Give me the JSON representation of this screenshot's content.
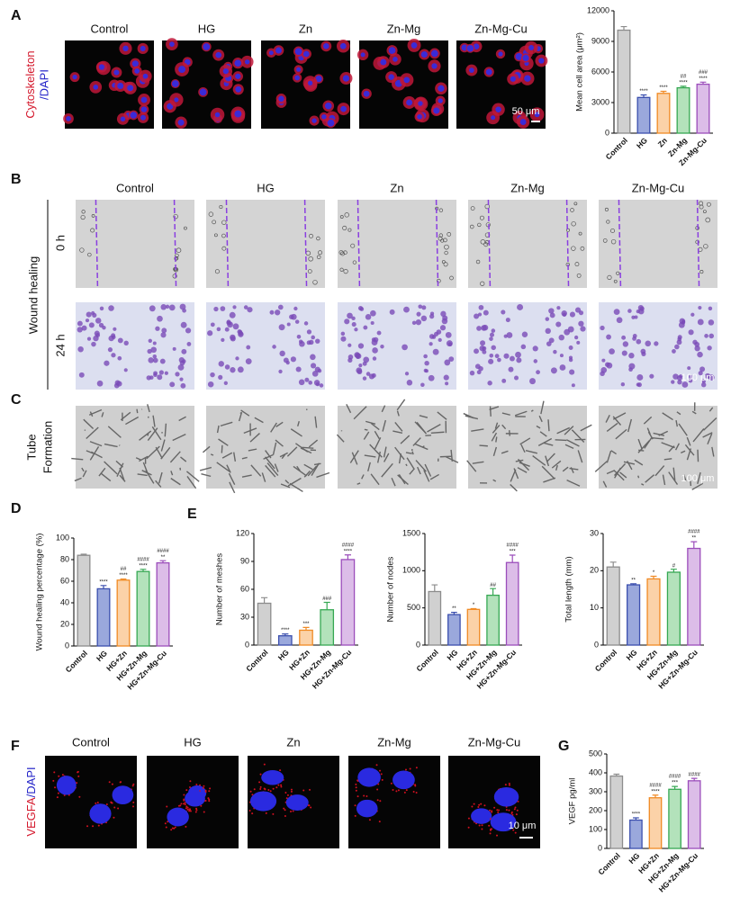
{
  "figure": {
    "panel_labels": [
      "A",
      "B",
      "C",
      "D",
      "E",
      "F",
      "G"
    ],
    "panel_a": {
      "columns": [
        "Control",
        "HG",
        "Zn",
        "Zn-Mg",
        "Zn-Mg-Cu"
      ],
      "ylabel_parts": [
        "Cytoskeleton",
        "/DAPI"
      ],
      "scale_bar": "50 μm"
    },
    "panel_b": {
      "columns": [
        "Control",
        "HG",
        "Zn",
        "Zn-Mg",
        "Zn-Mg-Cu"
      ],
      "rows": [
        "0 h",
        "24 h"
      ],
      "ylabel": "Wound healing",
      "scale_bar": "100 μm"
    },
    "panel_c": {
      "ylabel_lines": [
        "Tube",
        "Formation"
      ],
      "scale_bar": "100 μm"
    },
    "panel_f": {
      "columns": [
        "Control",
        "HG",
        "Zn",
        "Zn-Mg",
        "Zn-Mg-Cu"
      ],
      "ylabel_parts": [
        "VEGFA",
        "/DAPI"
      ],
      "scale_bar": "10 μm"
    }
  },
  "chart_data": [
    {
      "type": "bar",
      "ylabel": "Mean cell area (μm²)",
      "categories": [
        "Control",
        "HG",
        "Zn",
        "Zn-Mg",
        "Zn-Mg-Cu"
      ],
      "values": [
        10100,
        3500,
        3900,
        4450,
        4800
      ],
      "errors": [
        350,
        250,
        200,
        150,
        200
      ],
      "annotations": [
        [],
        [
          "****"
        ],
        [
          "****"
        ],
        [
          "##",
          "****"
        ],
        [
          "###",
          "****"
        ]
      ],
      "colors": [
        "#8c8c8c",
        "#3b4fae",
        "#f08a24",
        "#36a853",
        "#9b4dbb"
      ],
      "fill_colors": [
        "#d0d0d0",
        "#9aa8dc",
        "#fbd2a8",
        "#b3e2bb",
        "#dcbde8"
      ],
      "ylim": [
        0,
        12000
      ],
      "yticks": [
        0,
        3000,
        6000,
        9000,
        12000
      ]
    },
    {
      "type": "bar",
      "ylabel": "Wound healing percentage (%)",
      "categories": [
        "Control",
        "HG",
        "HG+Zn",
        "HG+Zn-Mg",
        "HG+Zn-Mg-Cu"
      ],
      "values": [
        84,
        53,
        61,
        69,
        77
      ],
      "errors": [
        1,
        3,
        1,
        2,
        2
      ],
      "annotations": [
        [],
        [
          "****"
        ],
        [
          "##",
          "****"
        ],
        [
          "####",
          "****"
        ],
        [
          "####",
          "**"
        ]
      ],
      "colors": [
        "#8c8c8c",
        "#3b4fae",
        "#f08a24",
        "#36a853",
        "#9b4dbb"
      ],
      "fill_colors": [
        "#d0d0d0",
        "#9aa8dc",
        "#fbd2a8",
        "#b3e2bb",
        "#dcbde8"
      ],
      "ylim": [
        0,
        100
      ],
      "yticks": [
        0,
        20,
        40,
        60,
        80,
        100
      ]
    },
    {
      "type": "bar",
      "ylabel": "Number of meshes",
      "categories": [
        "Control",
        "HG",
        "HG+Zn",
        "HG+Zn-Mg",
        "HG+Zn-Mg-Cu"
      ],
      "values": [
        45,
        10,
        16,
        38,
        92
      ],
      "errors": [
        6,
        2,
        3,
        8,
        5
      ],
      "annotations": [
        [],
        [
          "****"
        ],
        [
          "***"
        ],
        [
          "###"
        ],
        [
          "####",
          "****"
        ]
      ],
      "colors": [
        "#8c8c8c",
        "#3b4fae",
        "#f08a24",
        "#36a853",
        "#9b4dbb"
      ],
      "fill_colors": [
        "#d0d0d0",
        "#9aa8dc",
        "#fbd2a8",
        "#b3e2bb",
        "#dcbde8"
      ],
      "ylim": [
        0,
        120
      ],
      "yticks": [
        0,
        30,
        60,
        90,
        120
      ]
    },
    {
      "type": "bar",
      "ylabel": "Number of nodes",
      "categories": [
        "Control",
        "HG",
        "HG+Zn",
        "HG+Zn-Mg",
        "HG+Zn-Mg-Cu"
      ],
      "values": [
        720,
        410,
        480,
        670,
        1110
      ],
      "errors": [
        90,
        30,
        10,
        90,
        100
      ],
      "annotations": [
        [],
        [
          "**"
        ],
        [
          "*"
        ],
        [
          "##"
        ],
        [
          "####",
          "***"
        ]
      ],
      "colors": [
        "#8c8c8c",
        "#3b4fae",
        "#f08a24",
        "#36a853",
        "#9b4dbb"
      ],
      "fill_colors": [
        "#d0d0d0",
        "#9aa8dc",
        "#fbd2a8",
        "#b3e2bb",
        "#dcbde8"
      ],
      "ylim": [
        0,
        1500
      ],
      "yticks": [
        0,
        500,
        1000,
        1500
      ]
    },
    {
      "type": "bar",
      "ylabel": "Total length (mm)",
      "categories": [
        "Control",
        "HG",
        "HG+Zn",
        "HG+Zn-Mg",
        "HG+Zn-Mg-Cu"
      ],
      "values": [
        21,
        16.2,
        17.8,
        19.6,
        26
      ],
      "errors": [
        1.3,
        0.3,
        0.7,
        0.8,
        1.8
      ],
      "annotations": [
        [],
        [
          "**"
        ],
        [
          "*"
        ],
        [
          "#"
        ],
        [
          "####",
          "**"
        ]
      ],
      "colors": [
        "#8c8c8c",
        "#3b4fae",
        "#f08a24",
        "#36a853",
        "#9b4dbb"
      ],
      "fill_colors": [
        "#d0d0d0",
        "#9aa8dc",
        "#fbd2a8",
        "#b3e2bb",
        "#dcbde8"
      ],
      "ylim": [
        0,
        30
      ],
      "yticks": [
        0,
        10,
        20,
        30
      ]
    },
    {
      "type": "bar",
      "ylabel": "VEGF pg/ml",
      "categories": [
        "Control",
        "HG",
        "HG+Zn",
        "HG+Zn-Mg",
        "HG+Zn-Mg-Cu"
      ],
      "values": [
        383,
        150,
        268,
        313,
        358
      ],
      "errors": [
        10,
        12,
        14,
        15,
        13
      ],
      "annotations": [
        [],
        [
          "****"
        ],
        [
          "####",
          "****"
        ],
        [
          "####",
          "***"
        ],
        [
          "####"
        ]
      ],
      "colors": [
        "#8c8c8c",
        "#3b4fae",
        "#f08a24",
        "#36a853",
        "#9b4dbb"
      ],
      "fill_colors": [
        "#d0d0d0",
        "#9aa8dc",
        "#fbd2a8",
        "#b3e2bb",
        "#dcbde8"
      ],
      "ylim": [
        0,
        500
      ],
      "yticks": [
        0,
        100,
        200,
        300,
        400,
        500
      ]
    }
  ]
}
